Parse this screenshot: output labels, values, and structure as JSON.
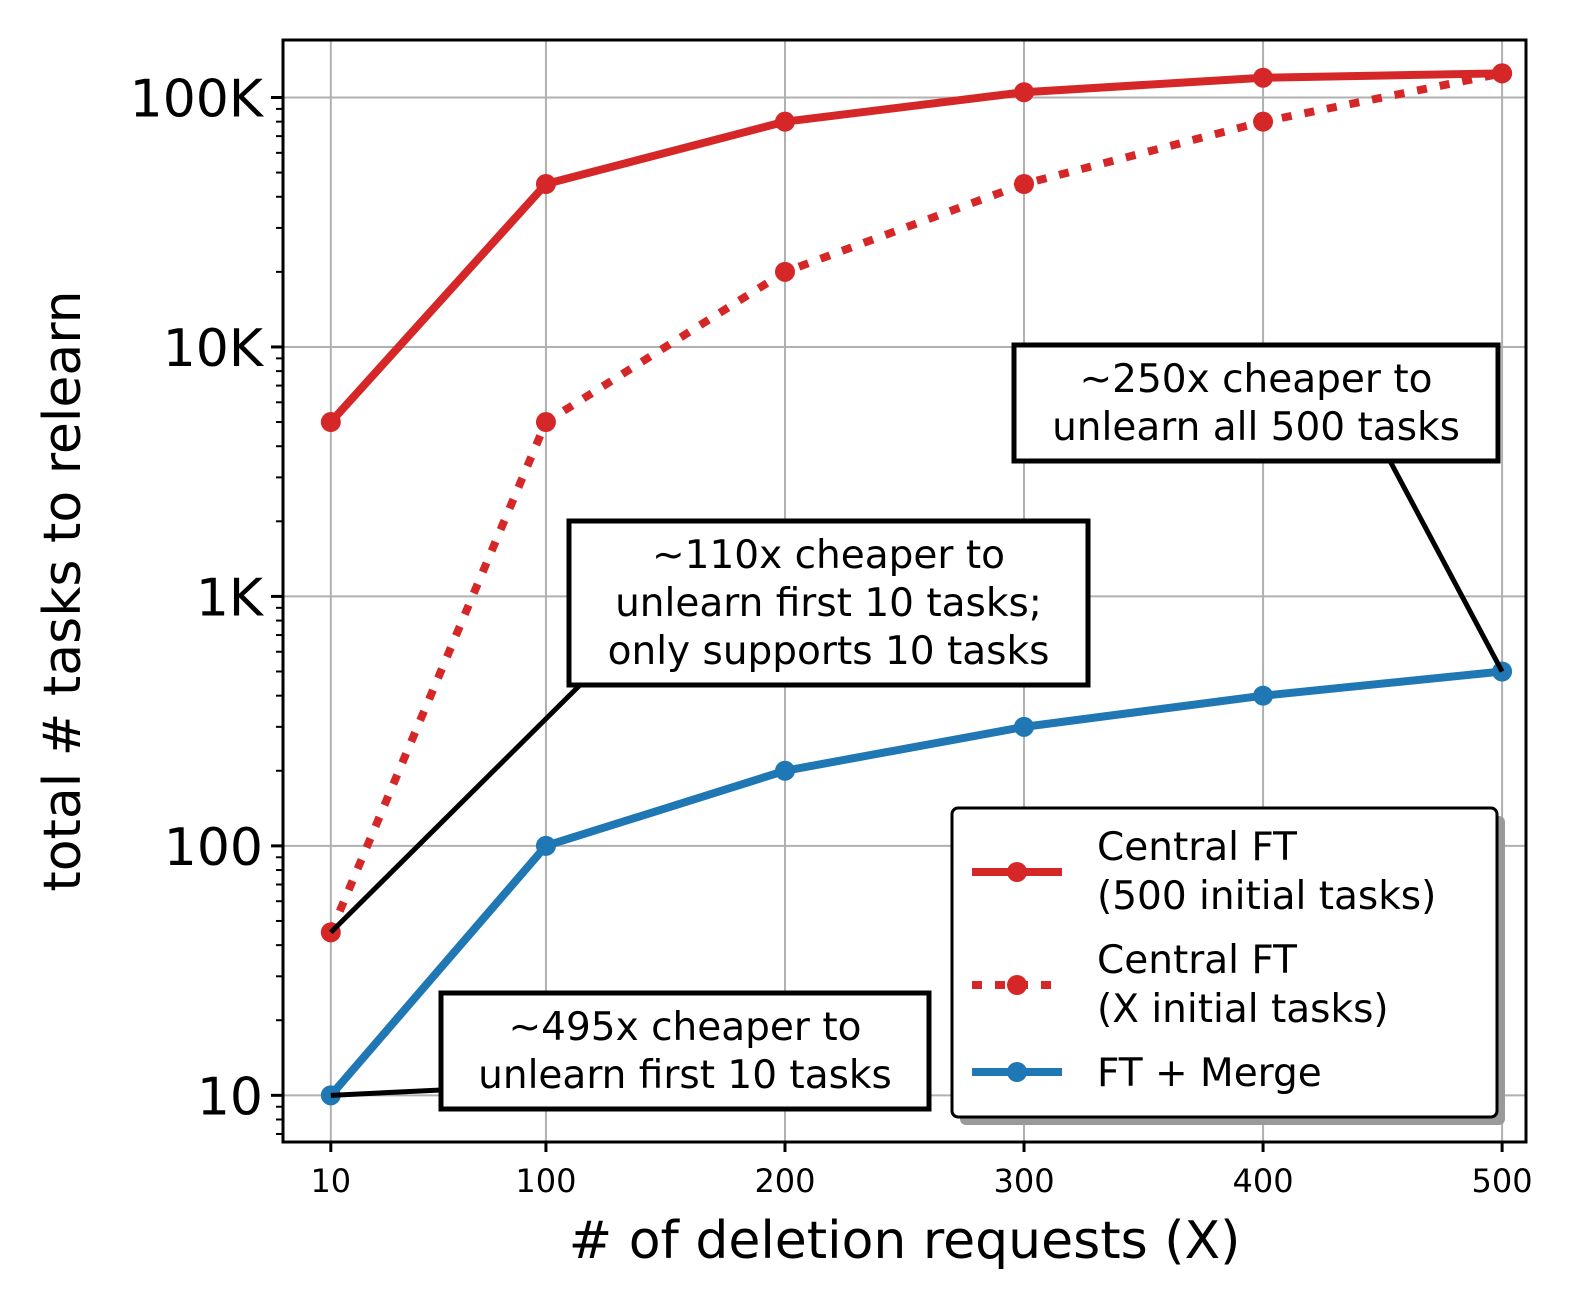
{
  "chart_data": {
    "type": "line",
    "title": "",
    "xlabel": "# of deletion requests (X)",
    "ylabel": "total # tasks to relearn",
    "x_positions": [
      10,
      100,
      200,
      300,
      400,
      500
    ],
    "x_tick_labels": [
      "10",
      "100",
      "200",
      "300",
      "400",
      "500"
    ],
    "xlim": [
      -10,
      510
    ],
    "y_scale": "log",
    "ylim": [
      6.5,
      170000
    ],
    "y_ticks": [
      10,
      100,
      1000,
      10000,
      100000
    ],
    "y_tick_labels": [
      "10",
      "100",
      "1K",
      "10K",
      "100K"
    ],
    "grid": true,
    "legend_position": "lower-right",
    "series": [
      {
        "name": "Central FT\n(500 initial tasks)",
        "color": "#d62728",
        "style": "solid",
        "x": [
          10,
          100,
          200,
          300,
          400,
          500
        ],
        "y": [
          5000,
          45000,
          80000,
          105000,
          120000,
          125000
        ]
      },
      {
        "name": "Central FT\n(X initial tasks)",
        "color": "#d62728",
        "style": "dotted",
        "x": [
          10,
          100,
          200,
          300,
          400,
          500
        ],
        "y": [
          45,
          5000,
          20000,
          45000,
          80000,
          125000
        ]
      },
      {
        "name": "FT + Merge",
        "color": "#1f77b4",
        "style": "solid",
        "x": [
          10,
          100,
          200,
          300,
          400,
          500
        ],
        "y": [
          10,
          100,
          200,
          300,
          400,
          500
        ]
      }
    ],
    "annotations": [
      {
        "lines": [
          "~250x cheaper to",
          "unlearn all 500 tasks"
        ],
        "points_to": {
          "x": 500,
          "y": 500
        }
      },
      {
        "lines": [
          "~110x cheaper to",
          "unlearn first 10 tasks;",
          "only supports 10 tasks"
        ],
        "points_to": {
          "x": 10,
          "y": 45
        }
      },
      {
        "lines": [
          "~495x cheaper to",
          "unlearn first 10 tasks"
        ],
        "points_to": {
          "x": 10,
          "y": 10
        }
      }
    ]
  }
}
